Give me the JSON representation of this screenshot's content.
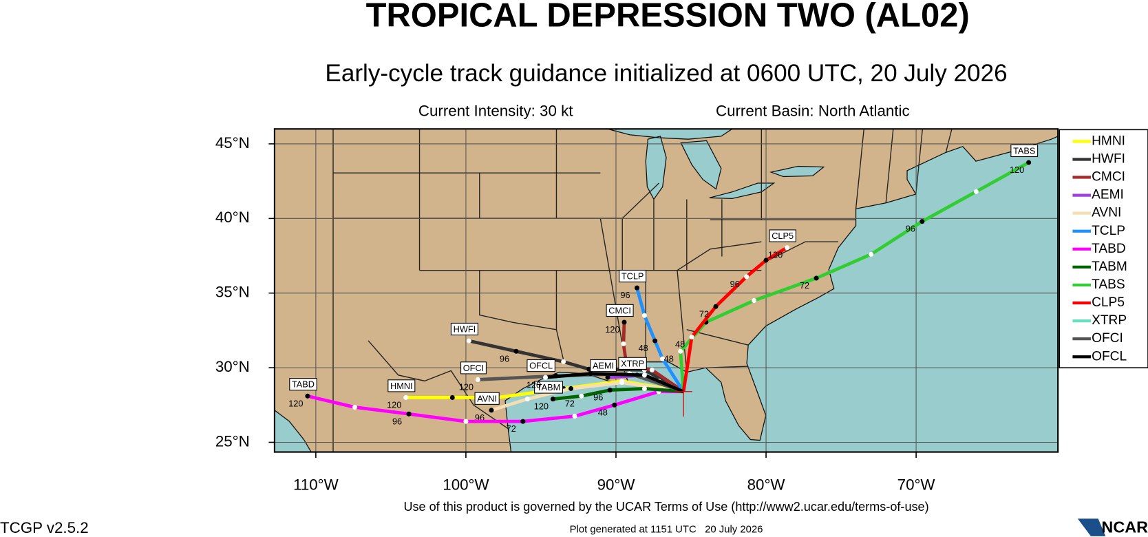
{
  "title": "TROPICAL DEPRESSION TWO (AL02)",
  "subtitle": "Early-cycle track guidance initialized at 0600 UTC, 20 July 2026",
  "current_intensity": "Current Intensity: 30 kt",
  "current_basin": "Current Basin: North Atlantic",
  "map": {
    "xlim": [
      -112.75,
      -60.55
    ],
    "ylim": [
      24.35,
      46
    ],
    "xticks": [
      {
        "value": -110,
        "label": "110°W"
      },
      {
        "value": -100,
        "label": "100°W"
      },
      {
        "value": -90,
        "label": "90°W"
      },
      {
        "value": -80,
        "label": "80°W"
      },
      {
        "value": -70,
        "label": "70°W"
      }
    ],
    "yticks": [
      {
        "value": 25,
        "label": "25°N"
      },
      {
        "value": 30,
        "label": "30°N"
      },
      {
        "value": 35,
        "label": "35°N"
      },
      {
        "value": 40,
        "label": "40°N"
      },
      {
        "value": 45,
        "label": "45°N"
      }
    ]
  },
  "storm_position": {
    "lon": -85.5,
    "lat": 28.4
  },
  "models": [
    {
      "name": "HMNI",
      "color": "#ffff00",
      "points": [
        {
          "lon": -85.5,
          "lat": 28.4
        },
        {
          "lon": -89.6,
          "lat": 29.1
        },
        {
          "lon": -93.5,
          "lat": 28.6
        },
        {
          "lon": -97.9,
          "lat": 28.0
        },
        {
          "lon": -100.9,
          "lat": 28.0
        },
        {
          "lon": -104.0,
          "lat": 28.0,
          "label": "120"
        }
      ]
    },
    {
      "name": "HWFI",
      "color": "#333333",
      "points": [
        {
          "lon": -85.5,
          "lat": 28.4
        },
        {
          "lon": -88.1,
          "lat": 29.85
        },
        {
          "lon": -91.8,
          "lat": 29.9
        },
        {
          "lon": -93.5,
          "lat": 30.4
        },
        {
          "lon": -96.65,
          "lat": 31.1,
          "label": "96"
        },
        {
          "lon": -99.8,
          "lat": 31.8
        }
      ]
    },
    {
      "name": "CMCI",
      "color": "#a52a2a",
      "points": [
        {
          "lon": -85.5,
          "lat": 28.4
        },
        {
          "lon": -87.6,
          "lat": 29.85
        },
        {
          "lon": -89.3,
          "lat": 30.2
        },
        {
          "lon": -89.5,
          "lat": 31.6
        },
        {
          "lon": -89.45,
          "lat": 33.05,
          "label": "120"
        }
      ]
    },
    {
      "name": "AEMI",
      "color": "#a040e0",
      "points": [
        {
          "lon": -85.5,
          "lat": 28.4
        },
        {
          "lon": -88.1,
          "lat": 29.5
        },
        {
          "lon": -90.55,
          "lat": 29.35
        }
      ]
    },
    {
      "name": "AVNI",
      "color": "#f5deb3",
      "points": [
        {
          "lon": -85.5,
          "lat": 28.4
        },
        {
          "lon": -89.6,
          "lat": 29.0
        },
        {
          "lon": -93.0,
          "lat": 28.6
        },
        {
          "lon": -95.9,
          "lat": 27.9
        },
        {
          "lon": -98.3,
          "lat": 27.15,
          "label": "96"
        }
      ]
    },
    {
      "name": "TCLP",
      "color": "#1e90ff",
      "points": [
        {
          "lon": -85.5,
          "lat": 28.4
        },
        {
          "lon": -86.9,
          "lat": 30.6
        },
        {
          "lon": -87.4,
          "lat": 31.8,
          "label": "48"
        },
        {
          "lon": -88.1,
          "lat": 33.5
        },
        {
          "lon": -88.6,
          "lat": 35.35,
          "label": "96"
        }
      ]
    },
    {
      "name": "TABD",
      "color": "#ff00ff",
      "points": [
        {
          "lon": -85.5,
          "lat": 28.4
        },
        {
          "lon": -87.15,
          "lat": 28.4
        },
        {
          "lon": -90.1,
          "lat": 27.5,
          "label": "48"
        },
        {
          "lon": -92.75,
          "lat": 26.75
        },
        {
          "lon": -96.2,
          "lat": 26.4,
          "label": "72"
        },
        {
          "lon": -100.0,
          "lat": 26.4
        },
        {
          "lon": -103.8,
          "lat": 26.9,
          "label": "96"
        },
        {
          "lon": -107.4,
          "lat": 27.35
        },
        {
          "lon": -110.55,
          "lat": 28.1,
          "label": "120"
        }
      ]
    },
    {
      "name": "TABM",
      "color": "#006400",
      "points": [
        {
          "lon": -85.5,
          "lat": 28.4
        },
        {
          "lon": -88.1,
          "lat": 28.6
        },
        {
          "lon": -90.4,
          "lat": 28.5,
          "label": "96"
        },
        {
          "lon": -92.3,
          "lat": 28.1,
          "label": "72"
        },
        {
          "lon": -94.2,
          "lat": 27.9,
          "label": "120"
        }
      ]
    },
    {
      "name": "TABS",
      "color": "#32cd32",
      "points": [
        {
          "lon": -85.5,
          "lat": 28.4
        },
        {
          "lon": -85.7,
          "lat": 31.1,
          "label": "48"
        },
        {
          "lon": -84.0,
          "lat": 33.05
        },
        {
          "lon": -80.8,
          "lat": 34.5
        },
        {
          "lon": -76.65,
          "lat": 36.0,
          "label": "72"
        },
        {
          "lon": -73.0,
          "lat": 37.6
        },
        {
          "lon": -69.6,
          "lat": 39.8,
          "label": "96"
        },
        {
          "lon": -66.0,
          "lat": 41.8
        },
        {
          "lon": -62.5,
          "lat": 43.75,
          "label": "120"
        }
      ]
    },
    {
      "name": "CLP5",
      "color": "#ff0000",
      "points": [
        {
          "lon": -85.5,
          "lat": 28.4
        },
        {
          "lon": -84.95,
          "lat": 32.05,
          "label": "48"
        },
        {
          "lon": -83.35,
          "lat": 34.1,
          "label": "72"
        },
        {
          "lon": -81.3,
          "lat": 36.1,
          "label": "96"
        },
        {
          "lon": -80.0,
          "lat": 37.2
        },
        {
          "lon": -78.6,
          "lat": 38.05,
          "label": "120"
        }
      ]
    },
    {
      "name": "XTRP",
      "color": "#66e0c0",
      "points": [
        {
          "lon": -85.5,
          "lat": 28.4
        },
        {
          "lon": -87.15,
          "lat": 29.1
        },
        {
          "lon": -88.6,
          "lat": 29.5
        }
      ]
    },
    {
      "name": "OFCI",
      "color": "#555555",
      "points": [
        {
          "lon": -85.5,
          "lat": 28.4
        },
        {
          "lon": -89.1,
          "lat": 29.6
        },
        {
          "lon": -94.0,
          "lat": 29.45
        },
        {
          "lon": -99.2,
          "lat": 29.2,
          "label": "120"
        }
      ]
    },
    {
      "name": "OFCL",
      "color": "#000000",
      "points": [
        {
          "lon": -85.5,
          "lat": 28.4
        },
        {
          "lon": -88.1,
          "lat": 29.5
        },
        {
          "lon": -91.7,
          "lat": 29.6
        },
        {
          "lon": -94.7,
          "lat": 29.35,
          "label": "120"
        }
      ]
    }
  ],
  "footer_terms": "Use of this product is governed by the UCAR Terms of Use (http://www2.ucar.edu/terms-of-use)",
  "generated": "Plot generated at 1151 UTC   20 July 2026",
  "version": "TCGP v2.5.2",
  "logo": "NCAR"
}
